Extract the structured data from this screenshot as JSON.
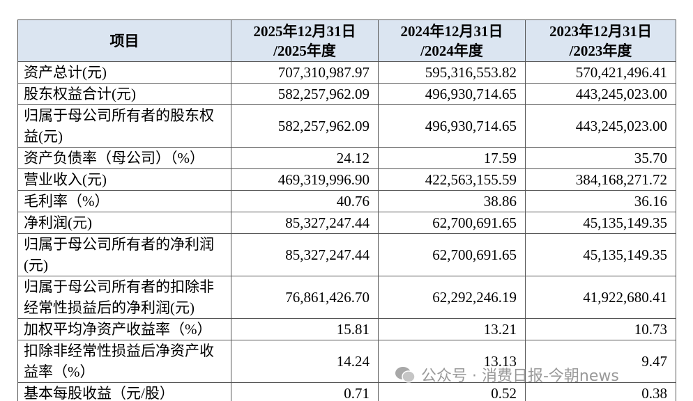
{
  "table": {
    "header": [
      "项目",
      [
        "2025年12月31日",
        "/2025年度"
      ],
      [
        "2024年12月31日",
        "/2024年度"
      ],
      [
        "2023年12月31日",
        "/2023年度"
      ]
    ],
    "rows": [
      [
        "资产总计(元)",
        "707,310,987.97",
        "595,316,553.82",
        "570,421,496.41"
      ],
      [
        "股东权益合计(元)",
        "582,257,962.09",
        "496,930,714.65",
        "443,245,023.00"
      ],
      [
        "归属于母公司所有者的股东权益(元)",
        "582,257,962.09",
        "496,930,714.65",
        "443,245,023.00"
      ],
      [
        "资产负债率（母公司）（%）",
        "24.12",
        "17.59",
        "35.70"
      ],
      [
        "营业收入(元)",
        "469,319,996.90",
        "422,563,155.59",
        "384,168,271.72"
      ],
      [
        "毛利率（%）",
        "40.76",
        "38.86",
        "36.16"
      ],
      [
        "净利润(元)",
        "85,327,247.44",
        "62,700,691.65",
        "45,135,149.35"
      ],
      [
        "归属于母公司所有者的净利润(元)",
        "85,327,247.44",
        "62,700,691.65",
        "45,135,149.35"
      ],
      [
        "归属于母公司所有者的扣除非经常性损益后的净利润(元)",
        "76,861,426.70",
        "62,292,246.19",
        "41,922,680.41"
      ],
      [
        "加权平均净资产收益率（%）",
        "15.81",
        "13.21",
        "10.73"
      ],
      [
        "扣除非经常性损益后净资产收益率（%）",
        "14.24",
        "13.13",
        "9.47"
      ],
      [
        "基本每股收益（元/股）",
        "0.71",
        "0.52",
        "0.38"
      ]
    ]
  },
  "watermark": "公众号 · 消费日报-今朝news"
}
